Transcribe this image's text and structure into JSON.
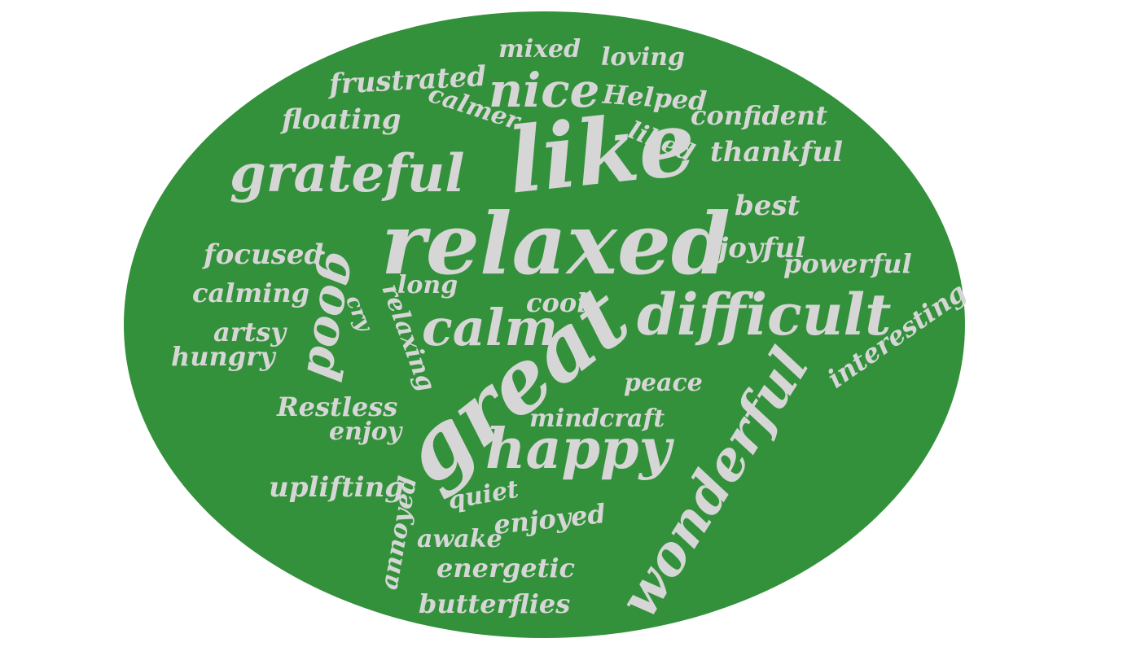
{
  "colors": {
    "background": "#ffffff",
    "ellipse": "#32913a",
    "text": "#d6d6d6"
  },
  "words": {
    "relaxed": "relaxed",
    "like": "like",
    "great": "great",
    "difficult": "difficult",
    "wonderful": "wonderful",
    "happy": "happy",
    "calm": "calm",
    "grateful": "grateful",
    "nice": "nice",
    "good": "good",
    "frustrated": "frustrated",
    "mixed": "mixed",
    "loving": "loving",
    "calmer": "calmer",
    "helped": "Helped",
    "floating": "floating",
    "confident": "confident",
    "liked": "liked",
    "thankful": "thankful",
    "best": "best",
    "focused": "focused",
    "joyful": "joyful",
    "powerful": "powerful",
    "calming": "calming",
    "long": "long",
    "relaxing": "relaxing",
    "cry": "cry",
    "cool": "cool",
    "interesting": "interesting",
    "artsy": "artsy",
    "hungry": "hungry",
    "peace": "peace",
    "restless": "Restless",
    "mindcraft": "mindcraft",
    "enjoy": "enjoy",
    "uplifting": "uplifting",
    "quiet": "quiet",
    "enjoyed": "enjoyed",
    "annoyed": "annoyed",
    "awake": "awake",
    "energetic": "energetic",
    "butterflies": "butterflies"
  }
}
